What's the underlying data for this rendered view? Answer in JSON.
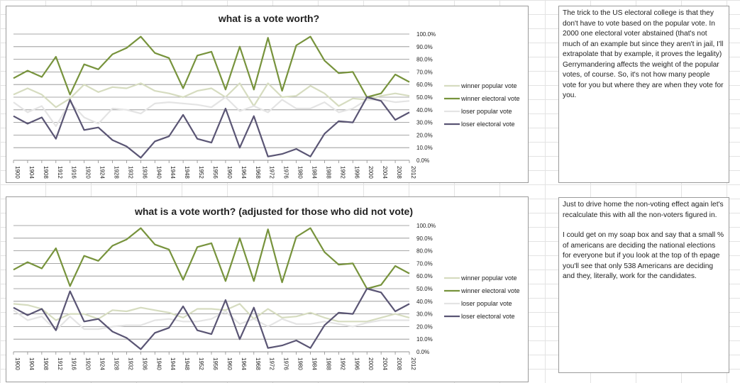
{
  "chart_data": [
    {
      "type": "line",
      "title": "what is a vote worth?",
      "x": [
        "1900",
        "1904",
        "1908",
        "1912",
        "1916",
        "1920",
        "1924",
        "1928",
        "1932",
        "1936",
        "1940",
        "1944",
        "1948",
        "1952",
        "1956",
        "1960",
        "1964",
        "1968",
        "1972",
        "1976",
        "1980",
        "1984",
        "1988",
        "1992",
        "1996",
        "2000",
        "2004",
        "2008",
        "2012"
      ],
      "y_ticks": [
        "0.0%",
        "10.0%",
        "20.0%",
        "30.0%",
        "40.0%",
        "50.0%",
        "60.0%",
        "70.0%",
        "80.0%",
        "90.0%",
        "100.0%"
      ],
      "ylim": [
        0,
        100
      ],
      "legend_position": "right",
      "grid": true,
      "series": [
        {
          "name": "winner popular vote",
          "color": "#d6dcc0",
          "values": [
            52,
            57,
            52,
            42,
            49,
            60,
            54,
            58,
            57,
            61,
            55,
            53,
            50,
            55,
            57,
            50,
            61,
            43,
            61,
            50,
            51,
            59,
            53,
            43,
            49,
            48,
            51,
            53,
            51
          ]
        },
        {
          "name": "winner electoral vote",
          "color": "#77933c",
          "values": [
            65,
            71,
            66,
            82,
            52,
            76,
            72,
            84,
            89,
            98,
            85,
            81,
            57,
            83,
            86,
            56,
            90,
            56,
            97,
            55,
            91,
            98,
            79,
            69,
            70,
            50,
            53,
            68,
            62
          ]
        },
        {
          "name": "loser popular vote",
          "color": "#e4e4e4",
          "values": [
            46,
            38,
            43,
            27,
            46,
            34,
            29,
            41,
            40,
            37,
            45,
            46,
            45,
            44,
            42,
            50,
            39,
            43,
            38,
            48,
            41,
            41,
            46,
            38,
            41,
            48,
            48,
            46,
            47
          ]
        },
        {
          "name": "loser electoral vote",
          "color": "#5a5574",
          "values": [
            35,
            29,
            34,
            17,
            48,
            24,
            26,
            16,
            11,
            2,
            15,
            19,
            36,
            17,
            14,
            41,
            10,
            35,
            3,
            5,
            9,
            3,
            21,
            31,
            30,
            50,
            47,
            32,
            38
          ]
        }
      ]
    },
    {
      "type": "line",
      "title": "what is a vote worth? (adjusted for those who did not vote)",
      "x": [
        "1900",
        "1904",
        "1908",
        "1912",
        "1916",
        "1920",
        "1924",
        "1928",
        "1932",
        "1936",
        "1940",
        "1944",
        "1948",
        "1952",
        "1956",
        "1960",
        "1964",
        "1968",
        "1972",
        "1976",
        "1980",
        "1984",
        "1988",
        "1992",
        "1996",
        "2000",
        "2004",
        "2008",
        "2012"
      ],
      "y_ticks": [
        "0.0%",
        "10.0%",
        "20.0%",
        "30.0%",
        "40.0%",
        "50.0%",
        "60.0%",
        "70.0%",
        "80.0%",
        "90.0%",
        "100.0%"
      ],
      "ylim": [
        0,
        100
      ],
      "legend_position": "right",
      "grid": true,
      "series": [
        {
          "name": "winner popular vote",
          "color": "#d6dcc0",
          "values": [
            38,
            37,
            34,
            25,
            30,
            30,
            26,
            33,
            32,
            35,
            33,
            31,
            27,
            34,
            34,
            33,
            38,
            26,
            34,
            27,
            28,
            31,
            27,
            24,
            24,
            24,
            27,
            30,
            27
          ]
        },
        {
          "name": "winner electoral vote",
          "color": "#77933c",
          "values": [
            65,
            71,
            66,
            82,
            52,
            76,
            72,
            84,
            89,
            98,
            85,
            81,
            57,
            83,
            86,
            56,
            90,
            56,
            97,
            55,
            91,
            98,
            79,
            69,
            70,
            50,
            53,
            68,
            62
          ]
        },
        {
          "name": "loser popular vote",
          "color": "#e4e4e4",
          "values": [
            33,
            25,
            28,
            17,
            28,
            18,
            18,
            20,
            21,
            21,
            25,
            26,
            24,
            24,
            26,
            32,
            22,
            26,
            20,
            26,
            22,
            22,
            24,
            22,
            20,
            23,
            25,
            25,
            25
          ]
        },
        {
          "name": "loser electoral vote",
          "color": "#5a5574",
          "values": [
            35,
            29,
            34,
            17,
            48,
            24,
            26,
            16,
            11,
            2,
            15,
            19,
            36,
            17,
            14,
            41,
            10,
            35,
            3,
            5,
            9,
            3,
            21,
            31,
            30,
            50,
            47,
            32,
            38
          ]
        }
      ]
    }
  ],
  "notes": {
    "note1": "The trick to the US electoral college is that they don't have to vote based on the popular vote. In 2000 one electoral voter abstained (that's not much of an example but since they aren't in jail, I'll extrapolate that by example, it proves the legality) Gerrymandering affects the weight of the popular votes, of course. So, it's not how many people vote for you but where they are when they vote for you.",
    "note2_p1": "Just to drive home the non-voting effect again let's recalculate this with all the non-voters figured in.",
    "note2_p2": "I could get on my soap box and say that a small % of americans are deciding the national elections for everyone but if you look at the top of th epage you'll see that only 538 Americans are deciding and they, literally, work for the candidates."
  }
}
